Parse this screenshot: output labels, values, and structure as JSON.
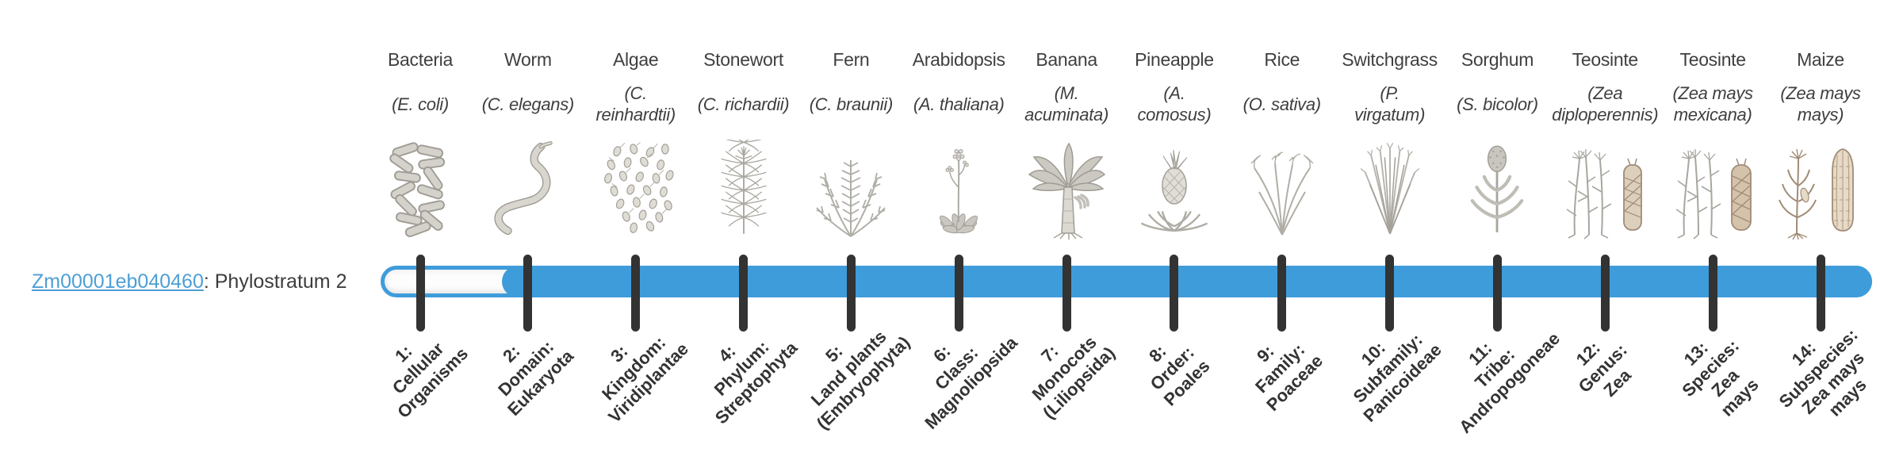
{
  "gene": {
    "id": "Zm00001eb040460",
    "suffix": ": Phylostratum 2",
    "phylostratum": 2
  },
  "bar": {
    "total_strata": 14,
    "unfilled_strata": [
      1
    ],
    "filled_from_stratum": 2,
    "filled_to_stratum": 14
  },
  "colors": {
    "bar_fill": "#3f9cdb",
    "track_background": "#fdfdfd",
    "tick": "#333333",
    "link": "#4d9fd6",
    "text": "#3f3f3f",
    "stage_text": "#333333"
  },
  "species": [
    {
      "key": "bacteria",
      "icon": "bacteria-illustration",
      "common": "Bacteria",
      "sci": "(E. coli)",
      "stage": [
        "1:",
        "Cellular",
        "Organisms"
      ]
    },
    {
      "key": "worm",
      "icon": "worm-illustration",
      "common": "Worm",
      "sci": "(C. elegans)",
      "stage": [
        "2:",
        "Domain:",
        "Eukaryota"
      ]
    },
    {
      "key": "algae",
      "icon": "algae-illustration",
      "common": "Algae",
      "sci": [
        "(C.",
        "reinhardtii)"
      ],
      "stage": [
        "3:",
        "Kingdom:",
        "Viridiplantae"
      ]
    },
    {
      "key": "stonewort",
      "icon": "stonewort-illustration",
      "common": "Stonewort",
      "sci": "(C. richardii)",
      "stage": [
        "4:",
        "Phylum:",
        "Streptophyta"
      ]
    },
    {
      "key": "fern",
      "icon": "fern-illustration",
      "common": "Fern",
      "sci": "(C. braunii)",
      "stage": [
        "5:",
        "Land plants",
        "(Embryophyta)"
      ]
    },
    {
      "key": "arabidopsis",
      "icon": "arabidopsis-illustration",
      "common": "Arabidopsis",
      "sci": "(A. thaliana)",
      "stage": [
        "6:",
        "Class:",
        "Magnoliopsida"
      ]
    },
    {
      "key": "banana",
      "icon": "banana-illustration",
      "common": "Banana",
      "sci": [
        "(M.",
        "acuminata)"
      ],
      "stage": [
        "7:",
        "Monocots",
        "(Liliopsida)"
      ]
    },
    {
      "key": "pineapple",
      "icon": "pineapple-illustration",
      "common": "Pineapple",
      "sci": [
        "(A.",
        "comosus)"
      ],
      "stage": [
        "8:",
        "Order:",
        "Poales"
      ]
    },
    {
      "key": "rice",
      "icon": "rice-illustration",
      "common": "Rice",
      "sci": "(O. sativa)",
      "stage": [
        "9:",
        "Family:",
        "Poaceae"
      ]
    },
    {
      "key": "switchgrass",
      "icon": "switchgrass-illustration",
      "common": "Switchgrass",
      "sci": [
        "(P.",
        "virgatum)"
      ],
      "stage": [
        "10:",
        "Subfamily:",
        "Panicoideae"
      ]
    },
    {
      "key": "sorghum",
      "icon": "sorghum-illustration",
      "common": "Sorghum",
      "sci": "(S. bicolor)",
      "stage": [
        "11:",
        "Tribe:",
        "Andropogoneae"
      ]
    },
    {
      "key": "teosinte-diploperennis",
      "icon": "teosinte-diploperennis-illustration",
      "common": "Teosinte",
      "sci": [
        "(Zea",
        "diploperennis)"
      ],
      "stage": [
        "12:",
        "Genus:",
        "Zea"
      ]
    },
    {
      "key": "teosinte-mexicana",
      "icon": "teosinte-mexicana-illustration",
      "common": "Teosinte",
      "sci": [
        "(Zea mays",
        "mexicana)"
      ],
      "stage": [
        "13:",
        "Species:",
        "Zea",
        "mays"
      ]
    },
    {
      "key": "maize",
      "icon": "maize-illustration",
      "common": "Maize",
      "sci": [
        "(Zea mays",
        "mays)"
      ],
      "stage": [
        "14:",
        "Subspecies:",
        "Zea mays",
        "mays"
      ]
    }
  ]
}
